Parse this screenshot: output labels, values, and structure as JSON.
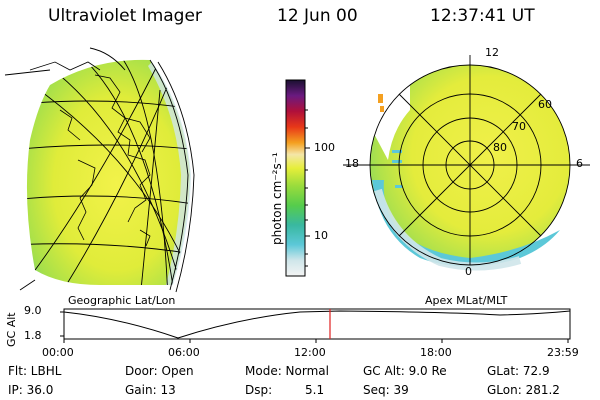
{
  "header": {
    "instrument": "Ultraviolet Imager",
    "date": "12 Jun 00",
    "time": "12:37:41 UT"
  },
  "colorbar": {
    "unit_label": "photon cm⁻²s⁻¹",
    "ticks": [
      "100",
      "10"
    ]
  },
  "geo_panel": {
    "label": "Geographic Lat/Lon"
  },
  "polar_panel": {
    "label": "Apex MLat/MLT",
    "mlt_labels": [
      "12",
      "18",
      "6",
      "0"
    ],
    "lat_labels": [
      "60",
      "70",
      "80"
    ]
  },
  "altitude_plot": {
    "ylabel": "GC Alt",
    "yticks": [
      "9.0",
      "1.8"
    ],
    "xticks": [
      "00:00",
      "06:00",
      "12:00",
      "18:00",
      "23:59"
    ],
    "marker_time": "12:37"
  },
  "status": {
    "flt": "Flt: LBHL",
    "door": "Door: Open",
    "mode": "Mode: Normal",
    "gc_alt": "GC Alt: 9.0 Re",
    "glat": "GLat: 72.9",
    "ip": "IP: 36.0",
    "gain": "Gain: 13",
    "dsp": "Dsp:",
    "dsp_val": "5.1",
    "seq": "Seq: 39",
    "glon": "GLon: 281.2"
  },
  "colors": {
    "aurora_main": "#e8ee3a",
    "aurora_edge": "#7fd94f",
    "aurora_rim": "#58c8d8",
    "marker": "#e02020"
  }
}
